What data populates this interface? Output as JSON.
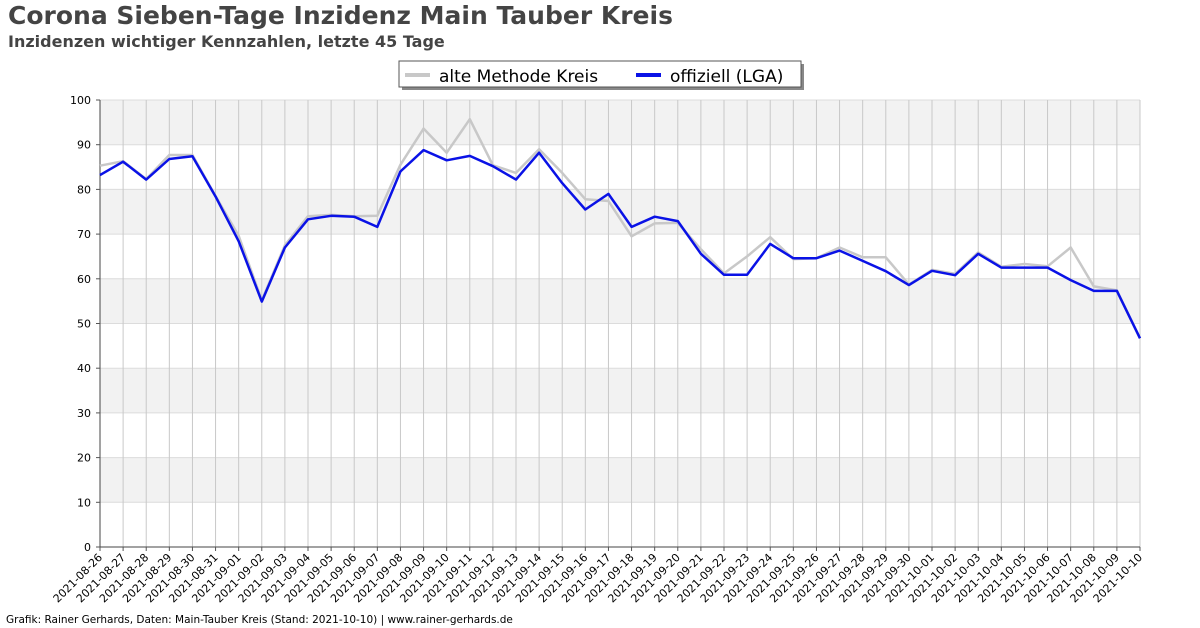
{
  "header": {
    "title": "Corona Sieben-Tage Inzidenz Main Tauber Kreis",
    "subtitle": "Inzidenzen wichtiger Kennzahlen, letzte 45 Tage"
  },
  "footer": {
    "text": "Grafik: Rainer Gerhards, Daten: Main-Tauber Kreis (Stand: 2021-10-10) | www.rainer-gerhards.de"
  },
  "chart_data": {
    "type": "line",
    "title": "Corona Sieben-Tage Inzidenz Main Tauber Kreis",
    "subtitle": "Inzidenzen wichtiger Kennzahlen, letzte 45 Tage",
    "xlabel": "",
    "ylabel": "",
    "ylim": [
      0,
      100
    ],
    "yticks": [
      0,
      10,
      20,
      30,
      40,
      50,
      60,
      70,
      80,
      90,
      100
    ],
    "grid": true,
    "legend_position": "top-center",
    "categories": [
      "2021-08-26",
      "2021-08-27",
      "2021-08-28",
      "2021-08-29",
      "2021-08-30",
      "2021-08-31",
      "2021-09-01",
      "2021-09-02",
      "2021-09-03",
      "2021-09-04",
      "2021-09-05",
      "2021-09-06",
      "2021-09-07",
      "2021-09-08",
      "2021-09-09",
      "2021-09-10",
      "2021-09-11",
      "2021-09-12",
      "2021-09-13",
      "2021-09-14",
      "2021-09-15",
      "2021-09-16",
      "2021-09-17",
      "2021-09-18",
      "2021-09-19",
      "2021-09-20",
      "2021-09-21",
      "2021-09-22",
      "2021-09-23",
      "2021-09-24",
      "2021-09-25",
      "2021-09-26",
      "2021-09-27",
      "2021-09-28",
      "2021-09-29",
      "2021-09-30",
      "2021-10-01",
      "2021-10-02",
      "2021-10-03",
      "2021-10-04",
      "2021-10-05",
      "2021-10-06",
      "2021-10-07",
      "2021-10-08",
      "2021-10-09",
      "2021-10-10"
    ],
    "series": [
      {
        "name": "alte Methode Kreis",
        "color": "#c8c8c8",
        "values": [
          85.3,
          86.3,
          82.3,
          87.7,
          87.7,
          78.5,
          69.6,
          55.2,
          67.5,
          74.0,
          74.3,
          74.0,
          74.1,
          85.5,
          93.6,
          88.2,
          95.7,
          85.4,
          83.7,
          89.0,
          83.7,
          77.8,
          77.4,
          69.5,
          72.4,
          72.5,
          66.6,
          61.2,
          65.0,
          69.3,
          64.4,
          64.6,
          67.0,
          64.8,
          64.8,
          58.7,
          62.0,
          61.1,
          65.9,
          62.7,
          63.3,
          62.8,
          67.0,
          58.3,
          57.4,
          46.7
        ]
      },
      {
        "name": "offiziell (LGA)",
        "color": "#0a12e6",
        "values": [
          83.2,
          86.2,
          82.2,
          86.8,
          87.4,
          78.4,
          68.4,
          54.9,
          67.0,
          73.3,
          74.1,
          73.9,
          71.6,
          84.0,
          88.8,
          86.5,
          87.5,
          85.2,
          82.2,
          88.2,
          81.4,
          75.5,
          79.0,
          71.6,
          73.9,
          72.9,
          65.6,
          60.9,
          60.9,
          67.8,
          64.6,
          64.6,
          66.3,
          64.0,
          61.7,
          58.6,
          61.8,
          60.8,
          65.6,
          62.5,
          62.5,
          62.5,
          59.7,
          57.3,
          57.3,
          46.7
        ]
      }
    ]
  }
}
